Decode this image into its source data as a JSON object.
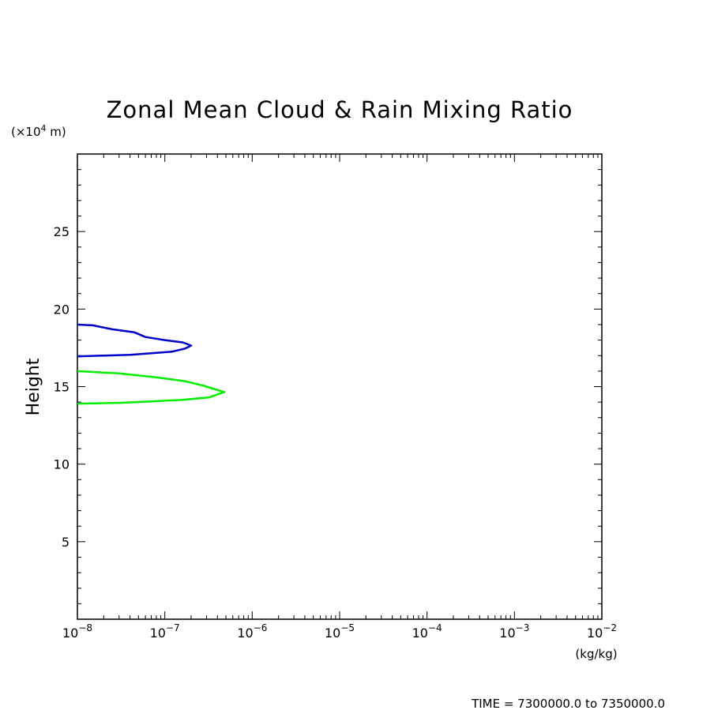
{
  "chart_data": {
    "type": "line",
    "title": "Zonal Mean Cloud & Rain Mixing Ratio",
    "ylabel": "Height",
    "y_unit_prefix": "(×10",
    "y_unit_exp": "4",
    "y_unit_suffix": " m)",
    "x_unit": "(kg/kg)",
    "footer": "TIME = 7300000.0 to 7350000.0",
    "x_scale": "log",
    "xlim": [
      1e-08,
      0.01
    ],
    "ylim": [
      0,
      30
    ],
    "x_ticks": [
      {
        "base": "10",
        "exp": "−8",
        "value": 1e-08
      },
      {
        "base": "10",
        "exp": "−7",
        "value": 1e-07
      },
      {
        "base": "10",
        "exp": "−6",
        "value": 1e-06
      },
      {
        "base": "10",
        "exp": "−5",
        "value": 1e-05
      },
      {
        "base": "10",
        "exp": "−4",
        "value": 0.0001
      },
      {
        "base": "10",
        "exp": "−3",
        "value": 0.001
      },
      {
        "base": "10",
        "exp": "−2",
        "value": 0.01
      }
    ],
    "y_ticks": [
      {
        "label": "5",
        "value": 5
      },
      {
        "label": "10",
        "value": 10
      },
      {
        "label": "15",
        "value": 15
      },
      {
        "label": "20",
        "value": 20
      },
      {
        "label": "25",
        "value": 25
      }
    ],
    "grid": false,
    "legend": "none",
    "series": [
      {
        "color": "#0000cc",
        "points": [
          [
            1e-08,
            19.0
          ],
          [
            1.5e-08,
            18.95
          ],
          [
            2.5e-08,
            18.7
          ],
          [
            4.5e-08,
            18.5
          ],
          [
            6e-08,
            18.2
          ],
          [
            1e-07,
            18.0
          ],
          [
            1.6e-07,
            17.85
          ],
          [
            2e-07,
            17.65
          ],
          [
            1.7e-07,
            17.45
          ],
          [
            1.2e-07,
            17.25
          ],
          [
            7e-08,
            17.15
          ],
          [
            4e-08,
            17.05
          ],
          [
            2e-08,
            17.0
          ],
          [
            1e-08,
            16.95
          ]
        ]
      },
      {
        "color": "#00ee00",
        "points": [
          [
            1e-08,
            16.0
          ],
          [
            3e-08,
            15.85
          ],
          [
            8e-08,
            15.6
          ],
          [
            1.7e-07,
            15.35
          ],
          [
            2.8e-07,
            15.05
          ],
          [
            4.8e-07,
            14.65
          ],
          [
            3.2e-07,
            14.3
          ],
          [
            1.6e-07,
            14.15
          ],
          [
            7e-08,
            14.05
          ],
          [
            3e-08,
            13.95
          ],
          [
            1e-08,
            13.9
          ]
        ]
      }
    ]
  }
}
